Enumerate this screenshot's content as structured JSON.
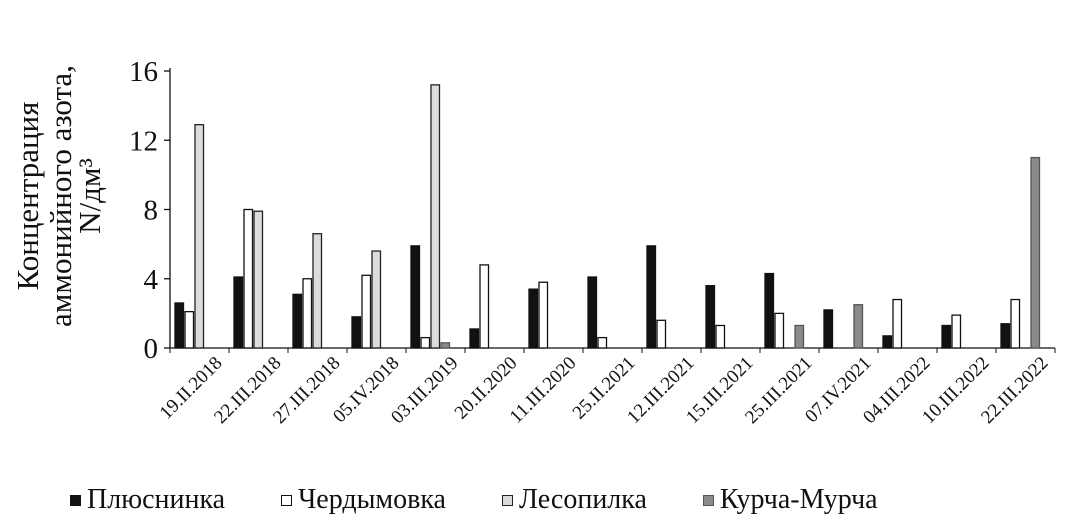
{
  "chart_data": {
    "type": "bar",
    "ylabel": "Концентрация аммонийного азота, N/дм³",
    "ylabel_lines": [
      "Концентрация",
      "аммонийного азота,",
      "N/дм³"
    ],
    "ylim": [
      0,
      16
    ],
    "yticks": [
      0,
      4,
      8,
      12,
      16
    ],
    "grid": false,
    "legend_position": "bottom",
    "categories": [
      "19.II.2018",
      "22.III.2018",
      "27.III.2018",
      "05.IV.2018",
      "03.III.2019",
      "20.II.2020",
      "11.III.2020",
      "25.II.2021",
      "12.III.2021",
      "15.III.2021",
      "25.III.2021",
      "07.IV.2021",
      "04.III.2022",
      "10.III.2022",
      "22.III.2022"
    ],
    "series": [
      {
        "name": "Плюснинка",
        "fill": "#111111",
        "stroke": "#111111",
        "values": [
          2.6,
          4.1,
          3.1,
          1.8,
          5.9,
          1.1,
          3.4,
          4.1,
          5.9,
          3.6,
          4.3,
          2.2,
          0.7,
          1.3,
          1.4
        ]
      },
      {
        "name": "Чердымовка",
        "fill": "#ffffff",
        "stroke": "#111111",
        "values": [
          2.1,
          8.0,
          4.0,
          4.2,
          0.6,
          4.8,
          3.8,
          0.6,
          1.6,
          1.3,
          2.0,
          null,
          2.8,
          1.9,
          2.8
        ]
      },
      {
        "name": "Лесопилка",
        "fill": "#dcdcdc",
        "stroke": "#222222",
        "values": [
          12.9,
          7.9,
          6.6,
          5.6,
          15.2,
          null,
          null,
          null,
          null,
          null,
          null,
          null,
          null,
          null,
          null
        ]
      },
      {
        "name": "Курча-Мурча",
        "fill": "#8a8a8a",
        "stroke": "#555555",
        "values": [
          null,
          null,
          null,
          null,
          0.3,
          null,
          null,
          null,
          null,
          null,
          1.3,
          2.5,
          null,
          null,
          11.0
        ]
      }
    ]
  }
}
